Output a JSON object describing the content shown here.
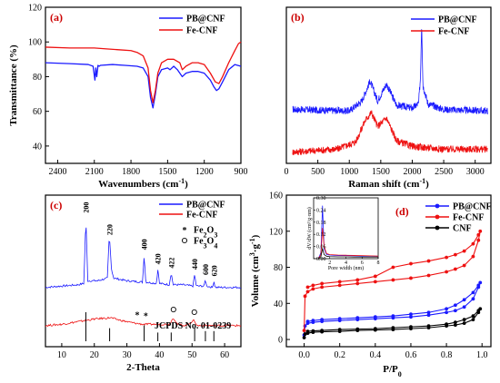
{
  "chart_data": [
    {
      "panel": "(a)",
      "type": "line",
      "xlabel": "Wavenumbers (cm",
      "xlabel_sup": "-1",
      "xlabel_end": ")",
      "ylabel": "Transmittance (%)",
      "xlim": [
        2500,
        900
      ],
      "ylim": [
        30,
        120
      ],
      "xticks": [
        2400,
        2100,
        1800,
        1500,
        1200,
        900
      ],
      "yticks": [
        40,
        60,
        80,
        100,
        120
      ],
      "legend": "top-right",
      "series": [
        {
          "name": "PB@CNF",
          "color": "#1a1aff",
          "x": [
            2500,
            2300,
            2150,
            2110,
            2095,
            2088,
            2080,
            2070,
            2060,
            2050,
            1950,
            1850,
            1750,
            1700,
            1660,
            1640,
            1620,
            1600,
            1580,
            1550,
            1500,
            1480,
            1450,
            1420,
            1380,
            1350,
            1300,
            1250,
            1200,
            1150,
            1120,
            1100,
            1080,
            1050,
            1000,
            950,
            900
          ],
          "y": [
            88,
            87.5,
            87,
            86,
            78,
            85,
            80,
            86.5,
            86,
            86.5,
            87,
            86.5,
            86,
            85,
            80,
            68,
            62,
            70,
            80,
            84,
            85,
            84,
            86,
            84,
            80,
            82,
            83,
            83,
            82,
            78,
            74,
            72,
            73,
            77,
            84,
            87,
            86
          ]
        },
        {
          "name": "Fe-CNF",
          "color": "#ee1111",
          "x": [
            2500,
            2300,
            2100,
            2000,
            1900,
            1800,
            1750,
            1700,
            1660,
            1640,
            1620,
            1600,
            1580,
            1550,
            1500,
            1450,
            1400,
            1380,
            1350,
            1300,
            1250,
            1200,
            1150,
            1110,
            1080,
            1050,
            1000,
            950,
            920,
            900
          ],
          "y": [
            97,
            96.5,
            96.5,
            96,
            95.5,
            95,
            94,
            92,
            85,
            72,
            65,
            72,
            82,
            88,
            90,
            90,
            88,
            84,
            86,
            88,
            88,
            87,
            82,
            77,
            76,
            80,
            88,
            95,
            99,
            100
          ]
        }
      ]
    },
    {
      "panel": "(b)",
      "type": "line",
      "xlabel": "Raman shift (cm",
      "xlabel_sup": "-1",
      "xlabel_end": ")",
      "xlim": [
        0,
        3250
      ],
      "xticks": [
        0,
        500,
        1000,
        1500,
        2000,
        2500,
        3000
      ],
      "legend": "top-right",
      "series": [
        {
          "name": "PB@CNF",
          "color": "#1a1aff",
          "x": [
            100,
            1000,
            1200,
            1330,
            1450,
            1590,
            1750,
            2000,
            2100,
            2130,
            2150,
            2170,
            2250,
            2500,
            3200
          ],
          "y": [
            0.38,
            0.37,
            0.44,
            0.58,
            0.44,
            0.56,
            0.41,
            0.39,
            0.42,
            0.6,
            1.0,
            0.55,
            0.42,
            0.38,
            0.37
          ]
        },
        {
          "name": "Fe-CNF",
          "color": "#ee1111",
          "x": [
            100,
            800,
            1100,
            1250,
            1350,
            1450,
            1590,
            1750,
            2000,
            2500,
            3200
          ],
          "y": [
            0.08,
            0.1,
            0.15,
            0.3,
            0.36,
            0.26,
            0.32,
            0.16,
            0.12,
            0.1,
            0.1
          ]
        }
      ]
    },
    {
      "panel": "(c)",
      "type": "line",
      "xlabel": "2-Theta",
      "xlim": [
        5,
        65
      ],
      "xticks": [
        10,
        20,
        30,
        40,
        50,
        60
      ],
      "legend": "top-right",
      "series": [
        {
          "name": "PB@CNF",
          "color": "#1a1aff",
          "x": [
            5,
            10,
            15,
            16.8,
            17.4,
            18,
            21,
            24,
            24.6,
            25.3,
            26,
            30,
            34.8,
            35.3,
            35.8,
            39.1,
            39.5,
            40,
            43,
            43.6,
            44.2,
            47,
            50.3,
            50.8,
            51.3,
            53.7,
            54.1,
            54.5,
            56.3,
            56.7,
            57.1,
            60,
            65
          ],
          "y": [
            0.45,
            0.46,
            0.47,
            0.48,
            0.98,
            0.5,
            0.5,
            0.52,
            0.85,
            0.58,
            0.52,
            0.5,
            0.49,
            0.7,
            0.49,
            0.48,
            0.59,
            0.48,
            0.47,
            0.56,
            0.47,
            0.47,
            0.46,
            0.55,
            0.46,
            0.46,
            0.51,
            0.46,
            0.45,
            0.5,
            0.45,
            0.45,
            0.45
          ]
        },
        {
          "name": "Fe-CNF",
          "color": "#ee1111",
          "x": [
            5,
            10,
            15,
            20,
            25,
            28,
            32,
            35,
            38,
            40,
            43,
            44.3,
            45.5,
            48,
            50.7,
            51.5,
            55,
            60,
            65
          ],
          "y": [
            0.16,
            0.17,
            0.19,
            0.21,
            0.22,
            0.2,
            0.18,
            0.17,
            0.17,
            0.17,
            0.17,
            0.22,
            0.17,
            0.16,
            0.2,
            0.16,
            0.16,
            0.16,
            0.16
          ]
        }
      ],
      "peak_labels": [
        {
          "x": 17.4,
          "text": "200"
        },
        {
          "x": 24.7,
          "text": "220"
        },
        {
          "x": 35.3,
          "text": "400"
        },
        {
          "x": 39.5,
          "text": "420"
        },
        {
          "x": 43.6,
          "text": "422"
        },
        {
          "x": 50.8,
          "text": "440"
        },
        {
          "x": 54.1,
          "text": "600"
        },
        {
          "x": 56.7,
          "text": "620"
        }
      ],
      "markers": [
        {
          "x": 33.2,
          "symbol": "star"
        },
        {
          "x": 35.8,
          "symbol": "star"
        },
        {
          "x": 44.3,
          "symbol": "circle"
        },
        {
          "x": 50.7,
          "symbol": "circle"
        }
      ],
      "marker_legend": [
        {
          "symbol": "star",
          "text": "Fe",
          "sub1": "2",
          "text2": "O",
          "sub2": "3"
        },
        {
          "symbol": "circle",
          "text": "Fe",
          "sub1": "3",
          "text2": "O",
          "sub2": "4"
        }
      ],
      "reference_lines": {
        "x": [
          17.4,
          24.7,
          35.3,
          39.5,
          43.6,
          50.8,
          54.1,
          56.7
        ],
        "h": [
          1.0,
          0.45,
          0.55,
          0.3,
          0.3,
          0.45,
          0.35,
          0.35
        ]
      },
      "reference_label": "JCPDS No. 01-0239"
    },
    {
      "panel": "(d)",
      "type": "line",
      "xlabel": "P/P",
      "xlabel_sub": "0",
      "ylabel": "Volume (cm",
      "ylabel_sup": "3",
      "ylabel_mid": "·g",
      "ylabel_sup2": "-1",
      "ylabel_end": ")",
      "xlim": [
        -0.1,
        1.05
      ],
      "ylim": [
        -8,
        160
      ],
      "xticks": [
        0.0,
        0.2,
        0.4,
        0.6,
        0.8,
        1.0
      ],
      "yticks": [
        0,
        40,
        80,
        120,
        160
      ],
      "legend": "top-right",
      "series": [
        {
          "name": "PB@CNF",
          "color": "#1a1aff",
          "x": [
            0.0,
            0.005,
            0.02,
            0.05,
            0.1,
            0.2,
            0.3,
            0.4,
            0.5,
            0.6,
            0.7,
            0.8,
            0.85,
            0.9,
            0.95,
            0.98,
            0.99,
            0.98,
            0.95,
            0.9,
            0.85,
            0.8,
            0.7,
            0.6,
            0.5,
            0.4,
            0.3,
            0.2,
            0.1,
            0.05,
            0.02
          ],
          "y": [
            5,
            15,
            18,
            19,
            20,
            21,
            22,
            23,
            24,
            25,
            27,
            30,
            32,
            36,
            45,
            58,
            63,
            60,
            52,
            44,
            38,
            34,
            30,
            28,
            26,
            25,
            24,
            23,
            22,
            21,
            20
          ]
        },
        {
          "name": "Fe-CNF",
          "color": "#ee1111",
          "x": [
            0.0,
            0.005,
            0.02,
            0.05,
            0.1,
            0.2,
            0.3,
            0.4,
            0.5,
            0.6,
            0.7,
            0.8,
            0.85,
            0.9,
            0.95,
            0.98,
            0.99,
            0.98,
            0.95,
            0.9,
            0.85,
            0.8,
            0.7,
            0.6,
            0.5,
            0.4,
            0.3,
            0.2,
            0.1,
            0.05,
            0.02
          ],
          "y": [
            10,
            48,
            53,
            56,
            58,
            60,
            62,
            64,
            66,
            68,
            71,
            75,
            78,
            82,
            92,
            110,
            120,
            116,
            106,
            98,
            94,
            91,
            87,
            84,
            80,
            70,
            66,
            64,
            62,
            60,
            58
          ]
        },
        {
          "name": "CNF",
          "color": "#000000",
          "x": [
            0.0,
            0.005,
            0.02,
            0.05,
            0.1,
            0.2,
            0.3,
            0.4,
            0.5,
            0.6,
            0.7,
            0.8,
            0.85,
            0.9,
            0.95,
            0.98,
            0.99,
            0.98,
            0.95,
            0.9,
            0.85,
            0.8,
            0.7,
            0.6,
            0.5,
            0.4,
            0.3,
            0.2,
            0.1,
            0.05,
            0.02
          ],
          "y": [
            2,
            6,
            7,
            8,
            8.5,
            9,
            10,
            10.5,
            11,
            12,
            13,
            15,
            16,
            18,
            22,
            30,
            34,
            32,
            26,
            22,
            19,
            17,
            15,
            14,
            13,
            12,
            11.5,
            11,
            10,
            9.5,
            9
          ]
        }
      ],
      "inset": {
        "xlabel": "Pore width (nm)",
        "ylabel": "dV/dW (cm³/g·nm)",
        "xlim": [
          0,
          8
        ],
        "ylim": [
          0,
          0.3
        ],
        "xticks": [
          2,
          4,
          6,
          8
        ],
        "yticks": [
          0.0,
          0.06,
          0.12,
          0.18,
          0.24,
          0.3
        ],
        "series": [
          {
            "color": "#1a1aff",
            "x": [
              0.6,
              0.9,
              1.1,
              1.3,
              1.6,
              2,
              3,
              4,
              5,
              6,
              7,
              8
            ],
            "y": [
              0.0,
              0.03,
              0.26,
              0.05,
              0.02,
              0.018,
              0.015,
              0.015,
              0.014,
              0.013,
              0.013,
              0.012
            ]
          },
          {
            "color": "#ee1111",
            "x": [
              0.6,
              0.9,
              1.1,
              1.3,
              1.6,
              2,
              3,
              4,
              5,
              6,
              7,
              8
            ],
            "y": [
              0.0,
              0.02,
              0.15,
              0.06,
              0.025,
              0.02,
              0.018,
              0.017,
              0.016,
              0.015,
              0.014,
              0.013
            ]
          },
          {
            "color": "#000000",
            "x": [
              0.6,
              0.9,
              1.1,
              1.3,
              1.6,
              2,
              3,
              4,
              5,
              6,
              7,
              8
            ],
            "y": [
              0.0,
              0.01,
              0.05,
              0.02,
              0.012,
              0.01,
              0.009,
              0.009,
              0.008,
              0.008,
              0.008,
              0.008
            ]
          }
        ]
      }
    }
  ]
}
